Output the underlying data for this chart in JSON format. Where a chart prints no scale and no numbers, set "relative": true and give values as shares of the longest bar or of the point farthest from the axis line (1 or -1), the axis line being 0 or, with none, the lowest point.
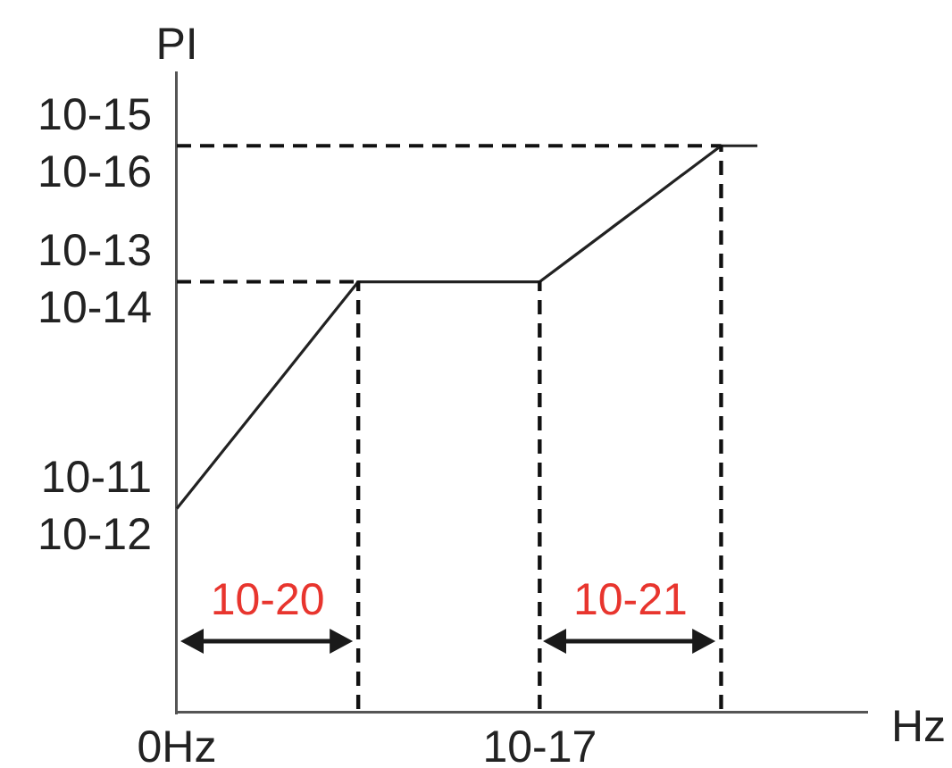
{
  "chart_data": {
    "type": "line",
    "xlabel": "Hz",
    "ylabel": "PI",
    "relative": true,
    "categories": [
      "0Hz",
      null,
      null,
      null,
      null,
      null,
      null,
      null,
      null,
      null,
      "10-17",
      null,
      null,
      null,
      null,
      null,
      null,
      null,
      null,
      null
    ],
    "series": [
      {
        "color": "#222222",
        "values": [
          0.36,
          0.44,
          0.52,
          0.6,
          0.68,
          0.76,
          0.76,
          0.76,
          0.76,
          0.76,
          0.76,
          0.808,
          0.856,
          0.904,
          0.952,
          1,
          1,
          null,
          null,
          null
        ]
      },
      {
        "color": "#111111",
        "line_style": "dashed",
        "values": [
          0.76,
          0.76,
          0.76,
          0.76,
          0.76,
          0.76,
          null,
          null,
          null,
          null,
          null,
          null,
          null,
          null,
          null,
          null,
          null,
          null,
          null,
          null
        ]
      },
      {
        "color": "#111111",
        "line_style": "dashed",
        "values": [
          1,
          1,
          1,
          1,
          1,
          1,
          1,
          1,
          1,
          1,
          1,
          1,
          1,
          1,
          1,
          1,
          null,
          null,
          null,
          null
        ]
      },
      {
        "type": "bar",
        "color": "#111111",
        "line_style": "dashed",
        "values": [
          null,
          null,
          null,
          null,
          null,
          0.76,
          null,
          null,
          null,
          null,
          0.76,
          null,
          null,
          null,
          null,
          1,
          null,
          null,
          null,
          null
        ]
      }
    ],
    "annotations": [
      {
        "text": "10-11\n10-12",
        "x": "0Hz",
        "y": 0.36
      },
      {
        "text": "10-13\n10-14",
        "x": "0Hz",
        "y": 0.76
      },
      {
        "text": "10-15\n10-16",
        "x": "0Hz",
        "y": 1
      },
      "10-20",
      "10-21"
    ],
    "grid": false,
    "legend": false,
    "marker": "none",
    "line_style": "solid"
  }
}
